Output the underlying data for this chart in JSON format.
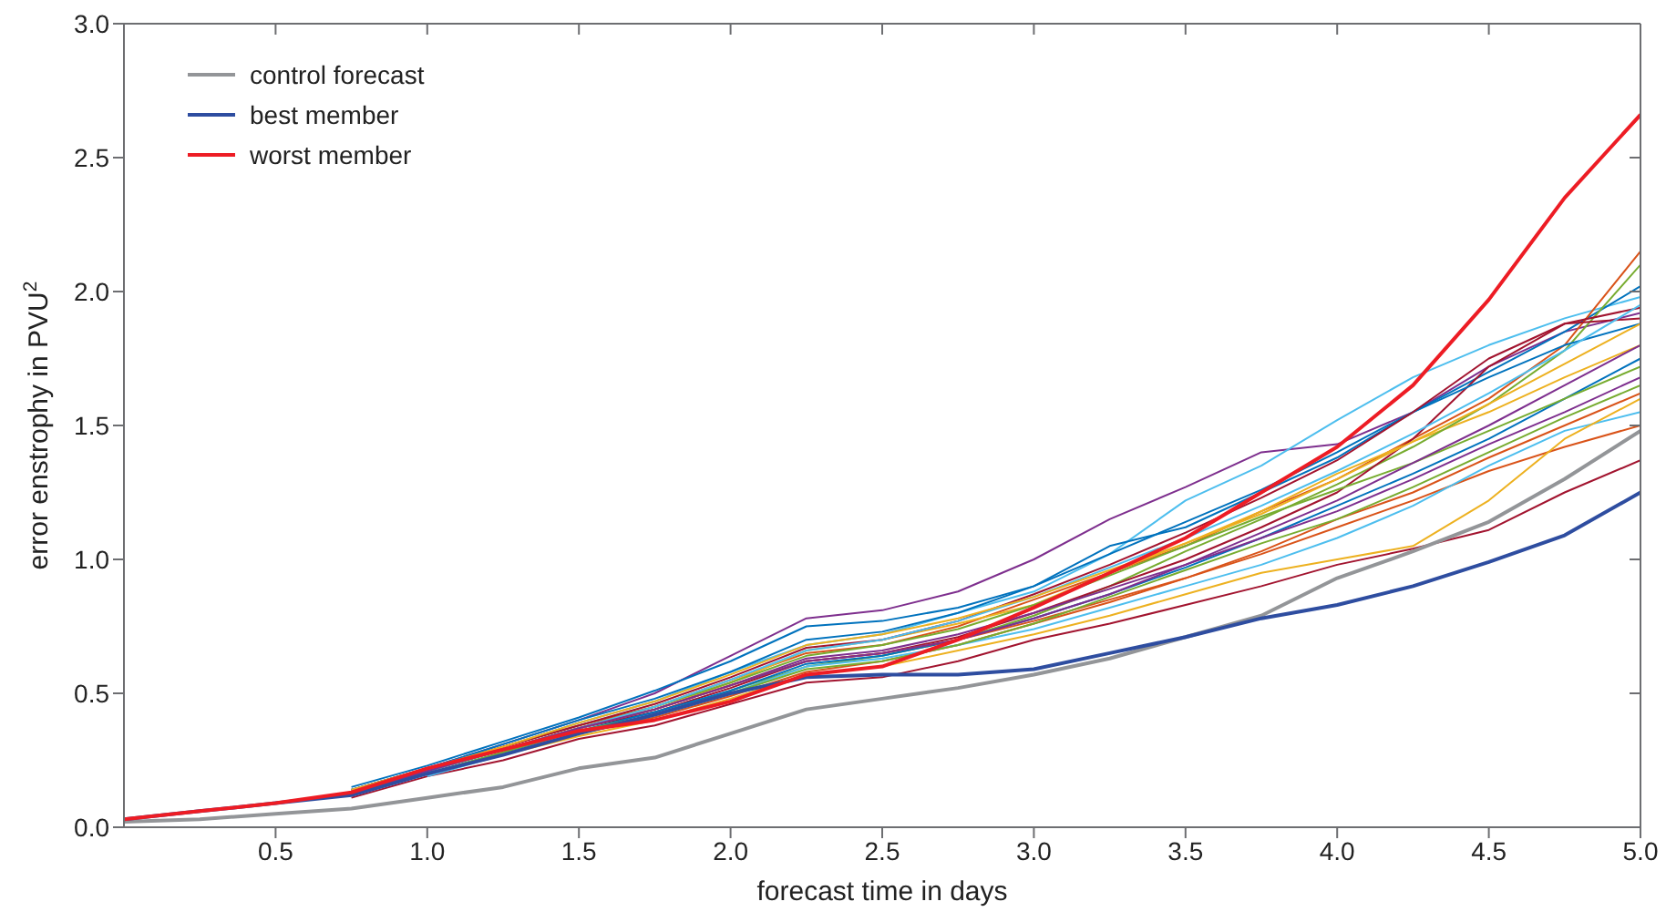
{
  "chart_data": {
    "type": "line",
    "xlabel": "forecast time in days",
    "ylabel": "error enstrophy in PVU$^{2}$",
    "legend": "top left",
    "x": [
      0,
      0.25,
      0.5,
      0.75,
      1,
      1.25,
      1.5,
      1.75,
      2,
      2.25,
      2.5,
      2.75,
      3,
      3.25,
      3.5,
      3.75,
      4,
      4.25,
      4.5,
      4.75,
      5
    ],
    "xlim": [
      0,
      5
    ],
    "xticks": [
      {
        "value": 0.5,
        "label": "0.5"
      },
      {
        "value": 1,
        "label": "1.0"
      },
      {
        "value": 1.5,
        "label": "1.5"
      },
      {
        "value": 2,
        "label": "2.0"
      },
      {
        "value": 2.5,
        "label": "2.5"
      },
      {
        "value": 3,
        "label": "3.0"
      },
      {
        "value": 3.5,
        "label": "3.5"
      },
      {
        "value": 4,
        "label": "4.0"
      },
      {
        "value": 4.5,
        "label": "4.5"
      },
      {
        "value": 5,
        "label": "5.0"
      }
    ],
    "ylim": [
      0,
      3
    ],
    "yticks": [
      {
        "value": 0,
        "label": "0.0"
      },
      {
        "value": 0.5,
        "label": "0.5"
      },
      {
        "value": 1,
        "label": "1.0"
      },
      {
        "value": 1.5,
        "label": "1.5"
      },
      {
        "value": 2,
        "label": "2.0"
      },
      {
        "value": 2.5,
        "label": "2.5"
      },
      {
        "value": 3,
        "label": "3.0"
      }
    ],
    "series": [
      {
        "color": "#7e2f8e",
        "values": [
          null,
          null,
          null,
          0.14,
          0.22,
          0.31,
          0.4,
          0.5,
          0.64,
          0.78,
          0.81,
          0.88,
          1.0,
          1.15,
          1.27,
          1.4,
          1.43,
          1.55,
          1.72,
          1.85,
          1.92
        ]
      },
      {
        "color": "#4dbeee",
        "values": [
          null,
          null,
          null,
          0.13,
          0.21,
          0.3,
          0.39,
          0.47,
          0.58,
          0.68,
          0.72,
          0.8,
          0.88,
          1.02,
          1.22,
          1.35,
          1.52,
          1.68,
          1.8,
          1.9,
          1.98
        ]
      },
      {
        "color": "#a2142f",
        "values": [
          null,
          null,
          null,
          0.11,
          0.19,
          0.25,
          0.33,
          0.38,
          0.46,
          0.54,
          0.56,
          0.62,
          0.7,
          0.76,
          0.83,
          0.9,
          0.98,
          1.04,
          1.11,
          1.25,
          1.37
        ]
      },
      {
        "color": "#0072bd",
        "values": [
          null,
          null,
          null,
          0.15,
          0.23,
          0.32,
          0.41,
          0.51,
          0.62,
          0.75,
          0.77,
          0.82,
          0.9,
          1.05,
          1.12,
          1.25,
          1.38,
          1.55,
          1.7,
          1.85,
          2.02
        ]
      },
      {
        "color": "#d95319",
        "values": [
          null,
          null,
          null,
          0.14,
          0.22,
          0.3,
          0.38,
          0.45,
          0.55,
          0.65,
          0.68,
          0.75,
          0.85,
          0.95,
          1.05,
          1.18,
          1.3,
          1.45,
          1.6,
          1.8,
          2.15
        ]
      },
      {
        "color": "#edb120",
        "values": [
          null,
          null,
          null,
          0.13,
          0.21,
          0.29,
          0.37,
          0.44,
          0.54,
          0.66,
          0.7,
          0.76,
          0.83,
          0.95,
          1.06,
          1.18,
          1.32,
          1.44,
          1.55,
          1.68,
          1.8
        ]
      },
      {
        "color": "#77ac30",
        "values": [
          null,
          null,
          null,
          0.12,
          0.2,
          0.27,
          0.35,
          0.42,
          0.51,
          0.6,
          0.64,
          0.7,
          0.79,
          0.9,
          1.03,
          1.15,
          1.28,
          1.42,
          1.58,
          1.78,
          2.1
        ]
      },
      {
        "color": "#a2142f",
        "values": [
          null,
          null,
          null,
          0.13,
          0.21,
          0.29,
          0.37,
          0.43,
          0.52,
          0.62,
          0.65,
          0.71,
          0.8,
          0.9,
          1.0,
          1.12,
          1.25,
          1.45,
          1.72,
          1.88,
          1.9
        ]
      },
      {
        "color": "#0072bd",
        "values": [
          null,
          null,
          null,
          0.12,
          0.2,
          0.28,
          0.36,
          0.43,
          0.51,
          0.61,
          0.64,
          0.7,
          0.78,
          0.87,
          0.97,
          1.08,
          1.2,
          1.32,
          1.45,
          1.6,
          1.75
        ]
      },
      {
        "color": "#d95319",
        "values": [
          null,
          null,
          null,
          0.12,
          0.2,
          0.27,
          0.35,
          0.41,
          0.49,
          0.58,
          0.62,
          0.68,
          0.76,
          0.84,
          0.93,
          1.02,
          1.12,
          1.22,
          1.33,
          1.42,
          1.5
        ]
      },
      {
        "color": "#7e2f8e",
        "values": [
          null,
          null,
          null,
          0.13,
          0.21,
          0.29,
          0.37,
          0.44,
          0.53,
          0.63,
          0.66,
          0.72,
          0.8,
          0.89,
          0.98,
          1.08,
          1.18,
          1.3,
          1.43,
          1.55,
          1.68
        ]
      },
      {
        "color": "#4dbeee",
        "values": [
          null,
          null,
          null,
          null,
          0.19,
          0.27,
          0.35,
          0.42,
          0.5,
          0.6,
          0.63,
          0.68,
          0.74,
          0.82,
          0.9,
          0.98,
          1.08,
          1.2,
          1.35,
          1.48,
          1.55
        ]
      },
      {
        "color": "#edb120",
        "values": [
          null,
          null,
          null,
          0.12,
          0.2,
          0.27,
          0.34,
          0.4,
          0.48,
          0.57,
          0.6,
          0.66,
          0.72,
          0.79,
          0.87,
          0.95,
          1.0,
          1.05,
          1.22,
          1.45,
          1.6
        ]
      },
      {
        "color": "#77ac30",
        "values": [
          null,
          null,
          null,
          0.13,
          0.21,
          0.29,
          0.37,
          0.45,
          0.54,
          0.64,
          0.68,
          0.74,
          0.83,
          0.94,
          1.05,
          1.16,
          1.26,
          1.36,
          1.48,
          1.6,
          1.72
        ]
      },
      {
        "color": "#0072bd",
        "values": [
          null,
          null,
          null,
          0.14,
          0.22,
          0.31,
          0.4,
          0.48,
          0.58,
          0.7,
          0.73,
          0.8,
          0.9,
          1.02,
          1.14,
          1.26,
          1.4,
          1.55,
          1.68,
          1.8,
          1.88
        ]
      },
      {
        "color": "#a2142f",
        "values": [
          null,
          null,
          null,
          0.14,
          0.21,
          0.3,
          0.38,
          0.46,
          0.56,
          0.67,
          0.7,
          0.77,
          0.87,
          0.98,
          1.1,
          1.23,
          1.37,
          1.55,
          1.75,
          1.88,
          1.94
        ]
      },
      {
        "color": "#d95319",
        "values": [
          null,
          null,
          null,
          0.13,
          0.21,
          0.29,
          0.37,
          0.44,
          0.53,
          0.62,
          0.65,
          0.7,
          0.77,
          0.85,
          0.93,
          1.03,
          1.15,
          1.25,
          1.38,
          1.5,
          1.62
        ]
      },
      {
        "color": "#4dbeee",
        "values": [
          null,
          null,
          null,
          0.14,
          0.21,
          0.29,
          0.37,
          0.45,
          0.55,
          0.66,
          0.7,
          0.77,
          0.86,
          0.97,
          1.08,
          1.2,
          1.33,
          1.47,
          1.62,
          1.78,
          1.95
        ]
      },
      {
        "color": "#edb120",
        "values": [
          null,
          null,
          null,
          0.14,
          0.22,
          0.3,
          0.39,
          0.47,
          0.57,
          0.68,
          0.72,
          0.78,
          0.86,
          0.96,
          1.06,
          1.17,
          1.3,
          1.44,
          1.58,
          1.73,
          1.88
        ]
      },
      {
        "color": "#7e2f8e",
        "values": [
          null,
          null,
          null,
          0.13,
          0.21,
          0.29,
          0.37,
          0.44,
          0.53,
          0.62,
          0.65,
          0.7,
          0.78,
          0.87,
          0.98,
          1.1,
          1.22,
          1.36,
          1.5,
          1.65,
          1.8
        ]
      },
      {
        "color": "#77ac30",
        "values": [
          null,
          null,
          null,
          0.12,
          0.2,
          0.28,
          0.36,
          0.42,
          0.5,
          0.59,
          0.62,
          0.68,
          0.76,
          0.86,
          0.96,
          1.06,
          1.15,
          1.27,
          1.4,
          1.53,
          1.65
        ]
      },
      {
        "name": "control forecast",
        "color": "#939598",
        "values": [
          0.02,
          0.03,
          0.05,
          0.07,
          0.11,
          0.15,
          0.22,
          0.26,
          0.35,
          0.44,
          0.48,
          0.52,
          0.57,
          0.63,
          0.71,
          0.79,
          0.93,
          1.03,
          1.14,
          1.3,
          1.48
        ]
      },
      {
        "name": "best member",
        "color": "#2e4da0",
        "values": [
          0.03,
          0.06,
          0.09,
          0.12,
          0.2,
          0.27,
          0.35,
          0.42,
          0.5,
          0.56,
          0.57,
          0.57,
          0.59,
          0.65,
          0.71,
          0.78,
          0.83,
          0.9,
          0.99,
          1.09,
          1.25
        ]
      },
      {
        "name": "worst member",
        "color": "#ed1c24",
        "values": [
          0.03,
          0.06,
          0.09,
          0.13,
          0.22,
          0.29,
          0.36,
          0.4,
          0.47,
          0.57,
          0.6,
          0.7,
          0.82,
          0.95,
          1.08,
          1.25,
          1.42,
          1.65,
          1.97,
          2.35,
          2.66
        ]
      }
    ]
  }
}
